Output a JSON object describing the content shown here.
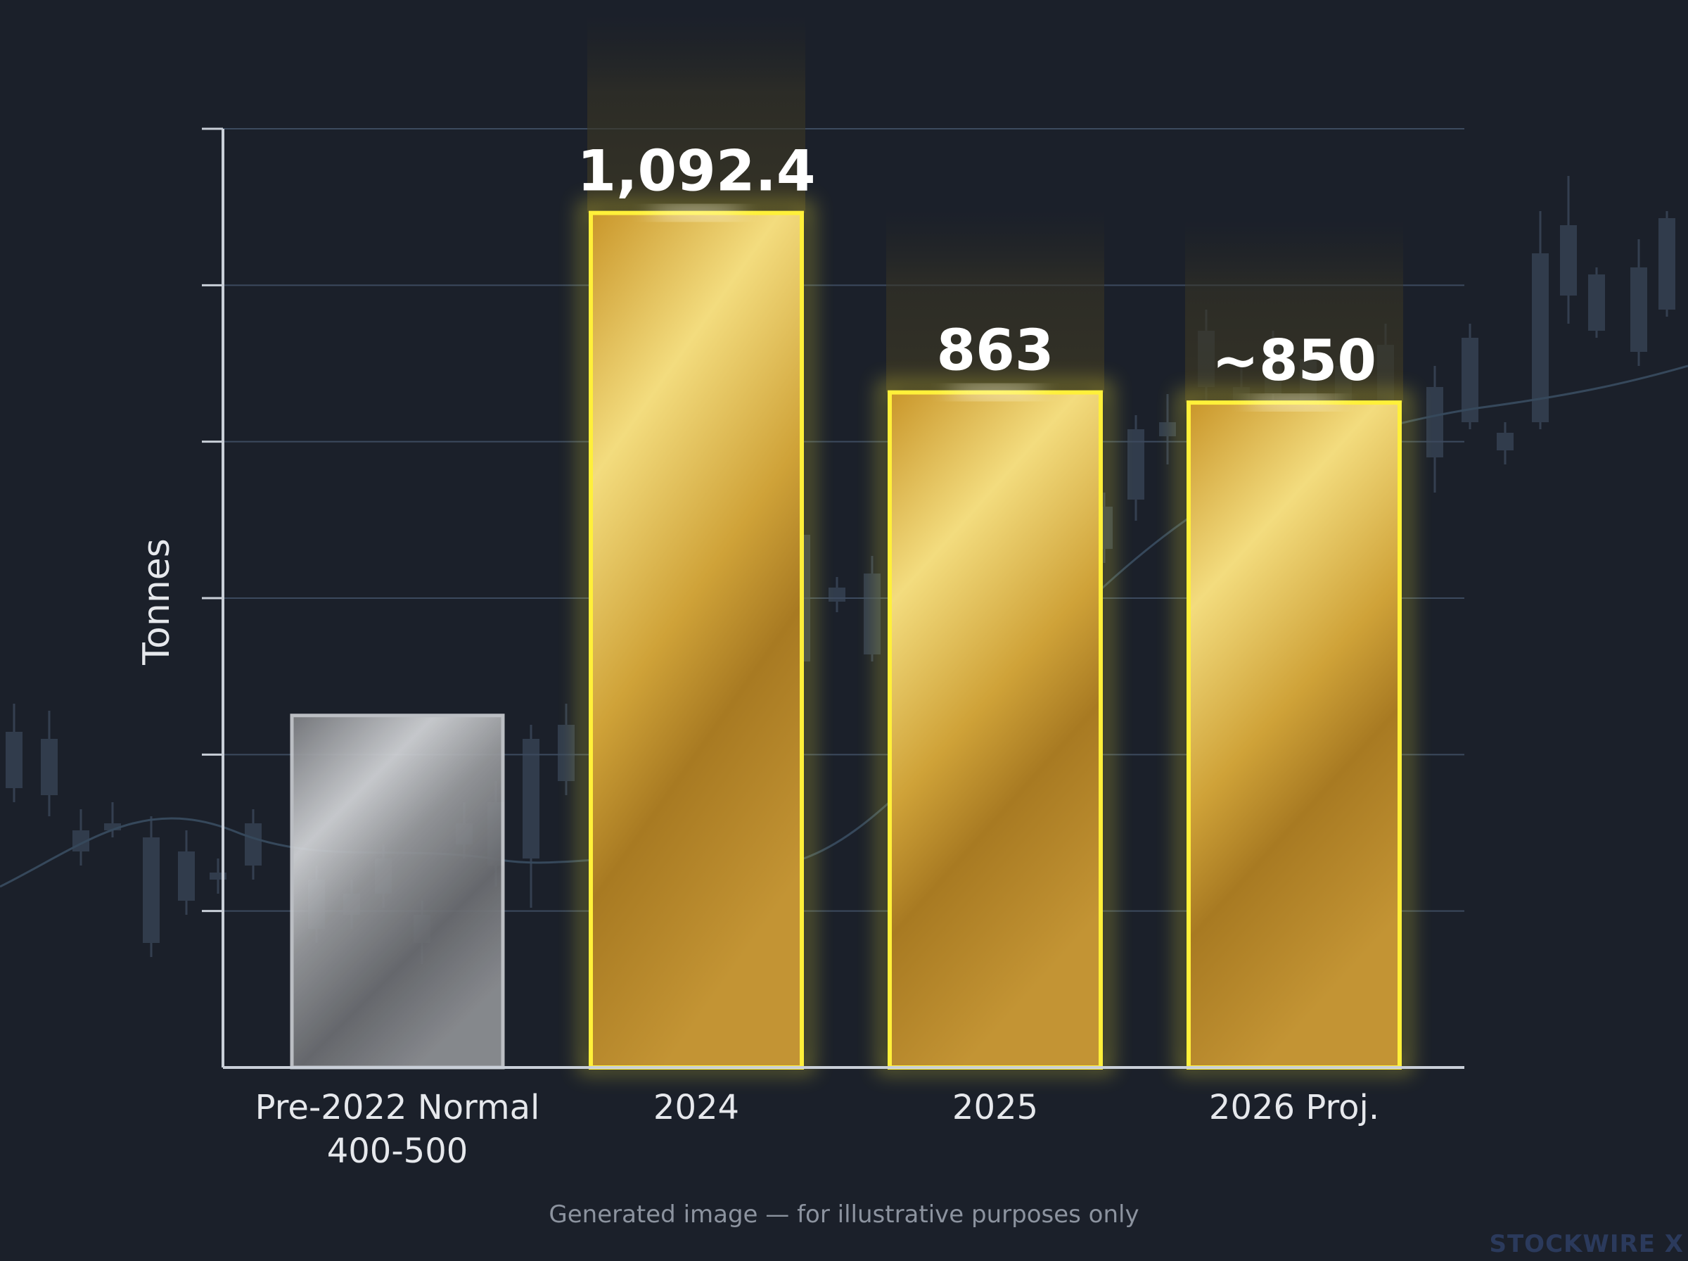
{
  "chart_data": {
    "type": "bar",
    "ylabel": "Tonnes",
    "categories": [
      "Pre-2022 Normal\n400-500",
      "2024",
      "2025",
      "2026 Proj."
    ],
    "values": [
      450,
      1092.4,
      863,
      850
    ],
    "value_labels": [
      "",
      "1,092.4",
      "863",
      "~850"
    ],
    "ylim": [
      0,
      1200
    ],
    "grid": true,
    "colors": {
      "baseline_bar": "#a6a8ab",
      "highlight_bar": "#e4bb3c",
      "highlight_outline": "#fff03a",
      "axis": "#c9cfd8",
      "grid": "#3c4a5e"
    }
  },
  "footer_note": "Generated image — for illustrative purposes only",
  "watermark": "STOCKWIRE X"
}
